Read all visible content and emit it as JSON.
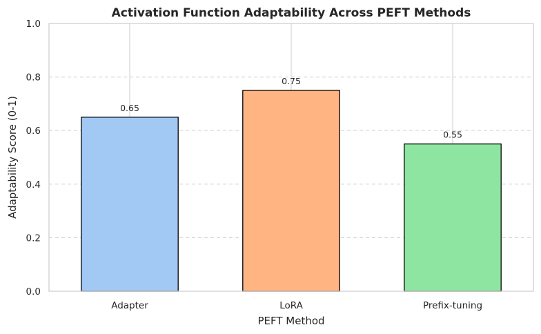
{
  "chart_data": {
    "type": "bar",
    "title": "Activation Function Adaptability Across PEFT Methods",
    "xlabel": "PEFT Method",
    "ylabel": "Adaptability Score (0-1)",
    "categories": [
      "Adapter",
      "LoRA",
      "Prefix-tuning"
    ],
    "values": [
      0.65,
      0.75,
      0.55
    ],
    "value_labels": [
      "0.65",
      "0.75",
      "0.55"
    ],
    "colors": [
      "#a1c9f4",
      "#ffb482",
      "#8de5a1"
    ],
    "edge_color": "#000000",
    "ylim": [
      0,
      1
    ],
    "yticks": [
      0.0,
      0.2,
      0.4,
      0.6,
      0.8,
      1.0
    ],
    "ytick_labels": [
      "0.0",
      "0.2",
      "0.4",
      "0.6",
      "0.8",
      "1.0"
    ],
    "grid": {
      "y": "dashed",
      "x": "solid"
    },
    "legend": "none"
  }
}
